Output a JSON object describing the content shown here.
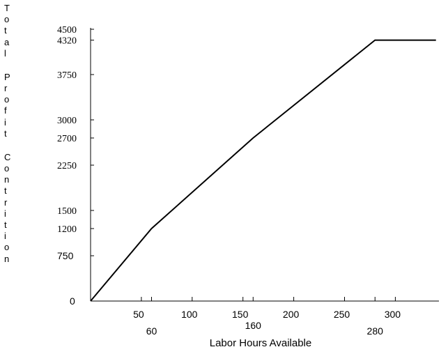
{
  "chart_data": {
    "type": "line",
    "title": "",
    "xlabel": "Labor Hours Available",
    "ylabel": "Total Profit Contrition",
    "xlim": [
      0,
      350
    ],
    "ylim": [
      0,
      4500
    ],
    "x_ticks": [
      50,
      100,
      150,
      200,
      250,
      300
    ],
    "x_breakpoints": [
      60,
      160,
      280
    ],
    "y_ticks": [
      0,
      750,
      1200,
      1500,
      2250,
      2700,
      3000,
      3750,
      4320,
      4500
    ],
    "grid": false,
    "series": [
      {
        "x": [
          0,
          60,
          160,
          280,
          340
        ],
        "y": [
          0,
          1200,
          2700,
          4320,
          4320
        ]
      }
    ]
  }
}
